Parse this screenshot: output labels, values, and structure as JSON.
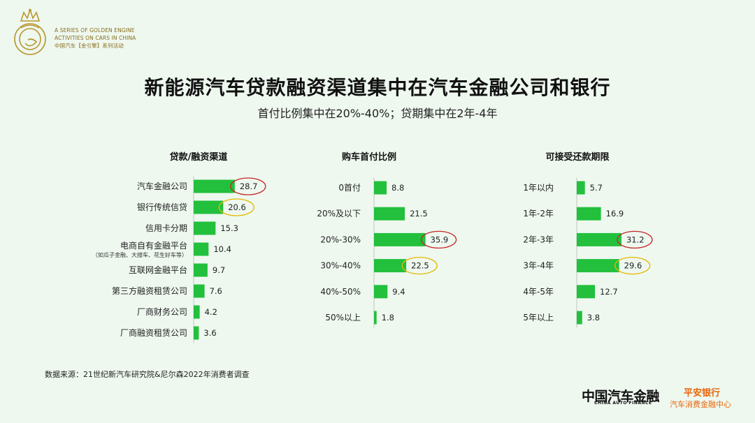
{
  "logo": {
    "line1": "A SERIES OF GOLDEN ENGINE",
    "line2": "ACTIVITIES ON CARS IN CHINA",
    "line3": "中国汽车【金引擎】系列活动",
    "icon": "golden-engine-crown-icon",
    "color": "#b8962e"
  },
  "title": "新能源汽车贷款融资渠道集中在汽车金融公司和银行",
  "subtitle": "首付比例集中在20%-40%；贷期集中在2年-4年",
  "source": "数据来源：21世纪新汽车研究院&尼尔森2022年消费者调查",
  "brand": {
    "cn": "中国汽车金融",
    "en": "CHINA AUTO FINANCE"
  },
  "bank": {
    "name": "平安银行",
    "sub": "汽车消费金融中心",
    "color": "#e8660c"
  },
  "colors": {
    "bar": "#22c03c",
    "highlight_red": "#c62828",
    "highlight_gold": "#e5b800",
    "background": "#eef8ef"
  },
  "chart_data": [
    {
      "type": "bar",
      "orientation": "horizontal",
      "title": "贷款/融资渠道",
      "categories": [
        "汽车金融公司",
        "银行传统信贷",
        "信用卡分期",
        "电商自有金融平台",
        "互联网金融平台",
        "第三方融资租赁公司",
        "厂商财务公司",
        "厂商融资租赁公司"
      ],
      "category_notes": [
        "",
        "",
        "",
        "（如瓜子金融、大搜车、花生好车等）",
        "",
        "",
        "",
        ""
      ],
      "values": [
        28.7,
        20.6,
        15.3,
        10.4,
        9.7,
        7.6,
        4.2,
        3.6
      ],
      "highlights": [
        "red",
        "gold",
        "",
        "",
        "",
        "",
        "",
        ""
      ]
    },
    {
      "type": "bar",
      "orientation": "horizontal",
      "title": "购车首付比例",
      "categories": [
        "0首付",
        "20%及以下",
        "20%-30%",
        "30%-40%",
        "40%-50%",
        "50%以上"
      ],
      "values": [
        8.8,
        21.5,
        35.9,
        22.5,
        9.4,
        1.8
      ],
      "highlights": [
        "",
        "",
        "red",
        "gold",
        "",
        ""
      ]
    },
    {
      "type": "bar",
      "orientation": "horizontal",
      "title": "可接受还款期限",
      "categories": [
        "1年以内",
        "1年-2年",
        "2年-3年",
        "3年-4年",
        "4年-5年",
        "5年以上"
      ],
      "values": [
        5.7,
        16.9,
        31.2,
        29.6,
        12.7,
        3.8
      ],
      "highlights": [
        "",
        "",
        "red",
        "gold",
        "",
        ""
      ]
    }
  ]
}
